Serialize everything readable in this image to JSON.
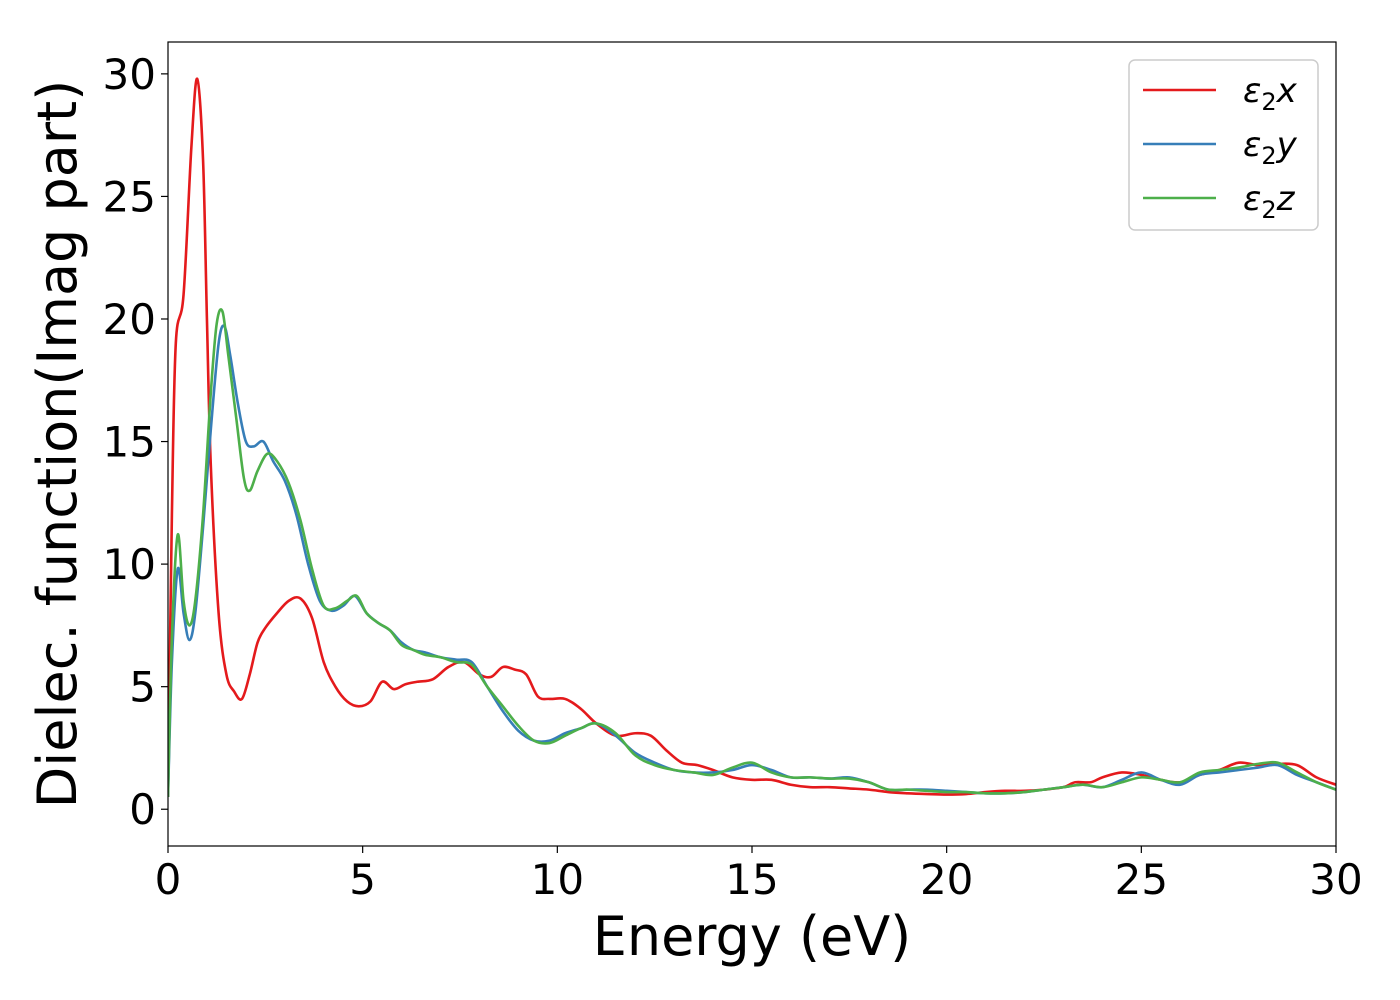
{
  "chart_data": {
    "type": "line",
    "title": "",
    "xlabel": "Energy (eV)",
    "ylabel": "Dielec. function(Imag part)",
    "xlim": [
      0,
      30
    ],
    "ylim": [
      -1.5,
      31.3
    ],
    "xticks": [
      0,
      5,
      10,
      15,
      20,
      25,
      30
    ],
    "yticks": [
      0,
      5,
      10,
      15,
      20,
      25,
      30
    ],
    "grid": false,
    "legend_position": "top-right",
    "series": [
      {
        "name": "ε2x",
        "legend_base": "ε",
        "legend_sub": "2",
        "legend_var": "x",
        "color": "#e41a1c",
        "x": [
          0,
          0.1,
          0.2,
          0.4,
          0.6,
          0.75,
          0.9,
          1.0,
          1.1,
          1.3,
          1.5,
          1.7,
          1.9,
          2.1,
          2.3,
          2.5,
          2.8,
          3.1,
          3.4,
          3.7,
          4.0,
          4.3,
          4.6,
          4.9,
          5.2,
          5.5,
          5.8,
          6.1,
          6.4,
          6.8,
          7.2,
          7.6,
          8.0,
          8.3,
          8.6,
          8.9,
          9.2,
          9.5,
          9.8,
          10.2,
          10.6,
          11.0,
          11.5,
          12.0,
          12.4,
          12.8,
          13.2,
          13.6,
          14.0,
          14.5,
          15.0,
          15.5,
          16.0,
          16.5,
          17.0,
          17.5,
          18.0,
          18.5,
          19.0,
          19.5,
          20.0,
          20.5,
          21.0,
          21.5,
          22.0,
          22.5,
          23.0,
          23.3,
          23.7,
          24.0,
          24.5,
          25.0,
          25.5,
          26.0,
          26.5,
          27.0,
          27.5,
          28.0,
          28.5,
          29.0,
          29.5,
          30.0
        ],
        "y": [
          0.5,
          12.0,
          19.0,
          21.0,
          27.0,
          29.8,
          26.5,
          20.0,
          14.0,
          8.0,
          5.5,
          4.8,
          4.5,
          5.5,
          6.8,
          7.4,
          8.0,
          8.5,
          8.6,
          7.8,
          6.0,
          5.0,
          4.4,
          4.2,
          4.4,
          5.2,
          4.9,
          5.1,
          5.2,
          5.3,
          5.8,
          6.0,
          5.5,
          5.4,
          5.8,
          5.7,
          5.5,
          4.6,
          4.5,
          4.5,
          4.1,
          3.5,
          3.0,
          3.1,
          3.0,
          2.4,
          1.9,
          1.8,
          1.6,
          1.3,
          1.2,
          1.2,
          1.0,
          0.9,
          0.9,
          0.85,
          0.8,
          0.7,
          0.65,
          0.62,
          0.6,
          0.62,
          0.7,
          0.75,
          0.75,
          0.8,
          0.9,
          1.1,
          1.1,
          1.3,
          1.5,
          1.4,
          1.2,
          1.1,
          1.4,
          1.6,
          1.9,
          1.8,
          1.85,
          1.8,
          1.3,
          1.0
        ]
      },
      {
        "name": "ε2y",
        "legend_base": "ε",
        "legend_sub": "2",
        "legend_var": "y",
        "color": "#377eb8",
        "x": [
          0,
          0.1,
          0.25,
          0.4,
          0.55,
          0.7,
          0.9,
          1.1,
          1.3,
          1.45,
          1.6,
          1.8,
          2.0,
          2.2,
          2.45,
          2.7,
          3.0,
          3.3,
          3.6,
          3.9,
          4.2,
          4.5,
          4.8,
          5.1,
          5.4,
          5.7,
          6.0,
          6.3,
          6.6,
          7.0,
          7.4,
          7.8,
          8.2,
          8.6,
          9.0,
          9.4,
          9.8,
          10.2,
          10.6,
          11.0,
          11.5,
          12.0,
          12.5,
          13.0,
          13.5,
          14.0,
          14.5,
          15.0,
          15.5,
          16.0,
          16.5,
          17.0,
          17.5,
          18.0,
          18.5,
          19.0,
          19.5,
          20.0,
          20.5,
          21.0,
          21.5,
          22.0,
          22.5,
          23.0,
          23.5,
          24.0,
          24.5,
          25.0,
          25.5,
          26.0,
          26.5,
          27.0,
          27.5,
          28.0,
          28.5,
          29.0,
          29.5,
          30.0
        ],
        "y": [
          0.5,
          6.0,
          9.8,
          8.0,
          6.9,
          8.0,
          11.5,
          15.5,
          19.0,
          19.7,
          18.5,
          16.5,
          15.0,
          14.8,
          15.0,
          14.2,
          13.4,
          12.0,
          10.0,
          8.5,
          8.1,
          8.3,
          8.7,
          8.0,
          7.6,
          7.3,
          6.8,
          6.5,
          6.4,
          6.2,
          6.1,
          6.0,
          5.0,
          4.0,
          3.2,
          2.8,
          2.8,
          3.1,
          3.3,
          3.5,
          3.0,
          2.3,
          1.9,
          1.6,
          1.5,
          1.5,
          1.6,
          1.8,
          1.6,
          1.3,
          1.3,
          1.25,
          1.3,
          1.1,
          0.8,
          0.8,
          0.8,
          0.75,
          0.7,
          0.65,
          0.65,
          0.7,
          0.8,
          0.9,
          1.0,
          0.9,
          1.2,
          1.5,
          1.2,
          1.0,
          1.4,
          1.5,
          1.6,
          1.7,
          1.8,
          1.4,
          1.1,
          0.8
        ]
      },
      {
        "name": "ε2z",
        "legend_base": "ε",
        "legend_sub": "2",
        "legend_var": "z",
        "color": "#4daf4a",
        "x": [
          0,
          0.1,
          0.25,
          0.4,
          0.55,
          0.7,
          0.9,
          1.1,
          1.25,
          1.4,
          1.55,
          1.75,
          1.95,
          2.1,
          2.3,
          2.55,
          2.8,
          3.1,
          3.4,
          3.7,
          4.0,
          4.3,
          4.6,
          4.85,
          5.1,
          5.4,
          5.7,
          6.0,
          6.3,
          6.6,
          7.0,
          7.4,
          7.8,
          8.2,
          8.6,
          9.0,
          9.4,
          9.8,
          10.2,
          10.6,
          11.0,
          11.5,
          12.0,
          12.5,
          13.0,
          13.5,
          14.0,
          14.5,
          15.0,
          15.5,
          16.0,
          16.5,
          17.0,
          17.5,
          18.0,
          18.5,
          19.0,
          19.5,
          20.0,
          20.5,
          21.0,
          21.5,
          22.0,
          22.5,
          23.0,
          23.5,
          24.0,
          24.5,
          25.0,
          25.5,
          26.0,
          26.5,
          27.0,
          27.5,
          28.0,
          28.5,
          29.0,
          29.5,
          30.0
        ],
        "y": [
          0.5,
          7.0,
          11.2,
          8.5,
          7.5,
          8.5,
          12.0,
          17.0,
          19.8,
          20.3,
          18.5,
          16.0,
          13.5,
          13.0,
          13.8,
          14.5,
          14.2,
          13.3,
          11.8,
          9.8,
          8.3,
          8.2,
          8.5,
          8.7,
          8.0,
          7.6,
          7.3,
          6.7,
          6.5,
          6.3,
          6.2,
          6.0,
          5.9,
          5.0,
          4.2,
          3.4,
          2.8,
          2.7,
          3.0,
          3.3,
          3.5,
          3.1,
          2.2,
          1.8,
          1.6,
          1.5,
          1.4,
          1.7,
          1.9,
          1.5,
          1.3,
          1.3,
          1.25,
          1.25,
          1.1,
          0.8,
          0.8,
          0.75,
          0.7,
          0.7,
          0.65,
          0.65,
          0.7,
          0.8,
          0.9,
          1.0,
          0.9,
          1.1,
          1.3,
          1.2,
          1.1,
          1.5,
          1.6,
          1.7,
          1.85,
          1.9,
          1.5,
          1.1,
          0.8
        ]
      }
    ]
  }
}
